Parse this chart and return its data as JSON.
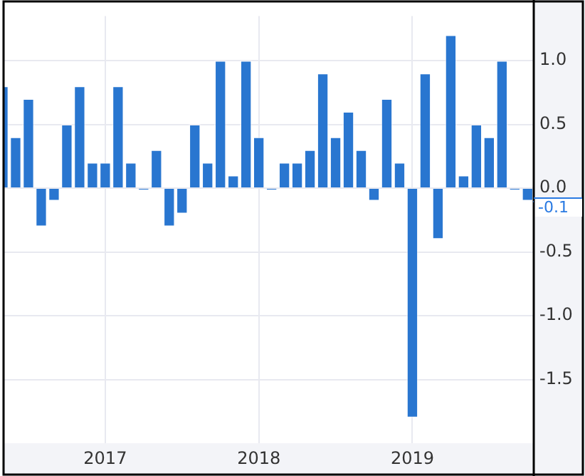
{
  "chart_data": {
    "type": "bar",
    "x": [
      "2016-05",
      "2016-06",
      "2016-07",
      "2016-08",
      "2016-09",
      "2016-10",
      "2016-11",
      "2016-12",
      "2017-01",
      "2017-02",
      "2017-03",
      "2017-04",
      "2017-05",
      "2017-06",
      "2017-07",
      "2017-08",
      "2017-09",
      "2017-10",
      "2017-11",
      "2017-12",
      "2018-01",
      "2018-02",
      "2018-03",
      "2018-04",
      "2018-05",
      "2018-06",
      "2018-07",
      "2018-08",
      "2018-09",
      "2018-10",
      "2018-11",
      "2018-12",
      "2019-01",
      "2019-02",
      "2019-03",
      "2019-04",
      "2019-05",
      "2019-06",
      "2019-07",
      "2019-08",
      "2019-09",
      "2019-10"
    ],
    "values": [
      0.8,
      0.4,
      0.7,
      -0.3,
      -0.1,
      0.5,
      0.8,
      0.2,
      0.2,
      0.8,
      0.2,
      -0.01,
      0.3,
      -0.3,
      -0.2,
      0.5,
      0.2,
      1.0,
      0.1,
      1.0,
      0.4,
      -0.01,
      0.2,
      0.2,
      0.3,
      0.9,
      0.4,
      0.6,
      0.3,
      -0.1,
      0.7,
      0.2,
      -1.8,
      0.9,
      -0.4,
      1.2,
      0.1,
      0.5,
      0.4,
      1.0,
      -0.01,
      -0.1
    ],
    "color": "#2976d0",
    "xlim": [
      "2016-05-01",
      "2019-10-16"
    ],
    "xticks": [
      "2017",
      "2018",
      "2019"
    ],
    "ylim": [
      -2.0,
      1.35
    ],
    "yticks": [
      {
        "value": -1.5,
        "label": "-1.5"
      },
      {
        "value": -1.0,
        "label": "-1.0"
      },
      {
        "value": -0.5,
        "label": "-0.5"
      },
      {
        "value": 0,
        "label": "0.0"
      },
      {
        "value": 0.5,
        "label": "0.5"
      },
      {
        "value": 1.0,
        "label": "1.0"
      }
    ],
    "grid": true,
    "legend": false,
    "annotations": [
      {
        "text": "-0.1",
        "x": "2019-10",
        "y": -0.1
      }
    ]
  }
}
